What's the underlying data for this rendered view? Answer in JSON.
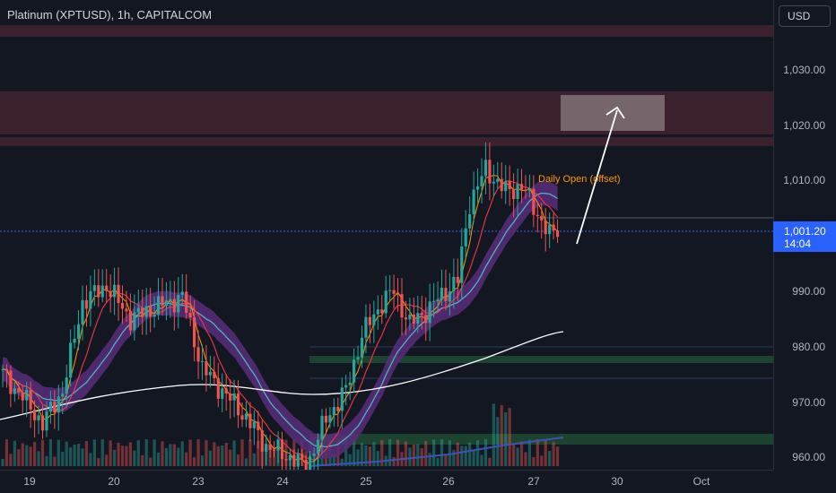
{
  "header": {
    "title": "Platinum (XPTUSD), 1h, CAPITALCOM"
  },
  "price_axis": {
    "currency": "USD",
    "ticks": [
      "1,030.00",
      "1,020.00",
      "1,010.00",
      "990.00",
      "980.00",
      "970.00",
      "960.00"
    ],
    "last_price": "1,001.20",
    "countdown": "14:04"
  },
  "time_axis": {
    "ticks": [
      "19",
      "20",
      "23",
      "24",
      "25",
      "26",
      "27",
      "30",
      "Oct"
    ]
  },
  "annotations": {
    "daily_open": "Daily Open (offset)"
  },
  "colors": {
    "background": "#131722",
    "up": "#26a69a",
    "down": "#ef5350",
    "zone": "#4a2431",
    "band": "#5b2d7a",
    "ema_mid": "#4fb3bf",
    "sma_long": "#ffffff",
    "fast_ma": "#ff9800",
    "slow_ma": "#f23645",
    "support": "#1f4d35",
    "arrow": "#ffffff",
    "target": "#8b7d82",
    "volume_ma": "#3f51b5",
    "last_price": "#2962ff"
  }
}
